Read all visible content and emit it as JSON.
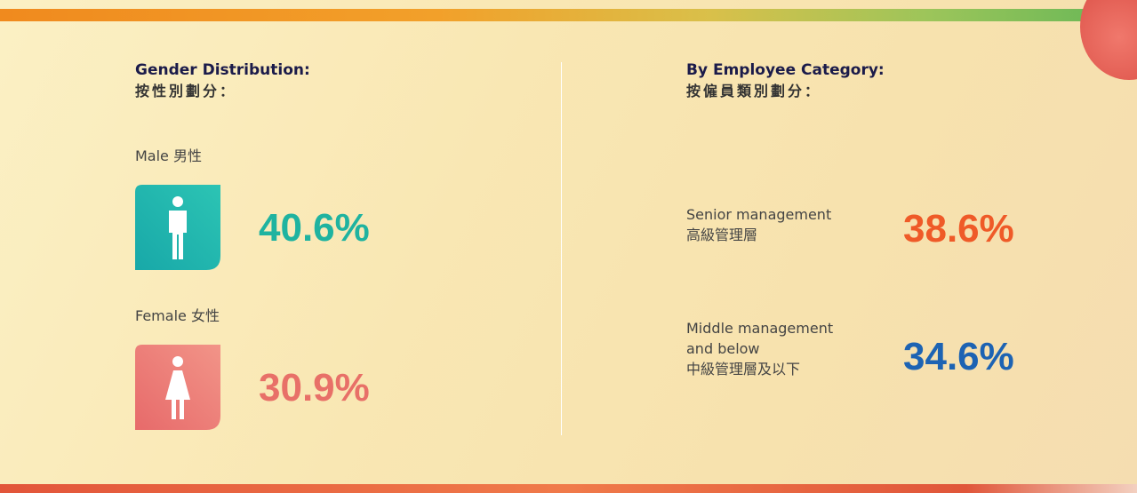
{
  "gender": {
    "title": "Gender Distribution:",
    "title_zh": "按性別劃分：",
    "items": [
      {
        "label": "Male 男性",
        "value": "40.6%"
      },
      {
        "label": "Female 女性",
        "value": "30.9%"
      }
    ]
  },
  "category": {
    "title": "By Employee Category:",
    "title_zh": "按僱員類別劃分：",
    "items": [
      {
        "lines": [
          "Senior management",
          "高級管理層"
        ],
        "value": "38.6%"
      },
      {
        "lines": [
          "Middle management",
          "and below",
          "中級管理層及以下"
        ],
        "value": "34.6%"
      }
    ]
  }
}
